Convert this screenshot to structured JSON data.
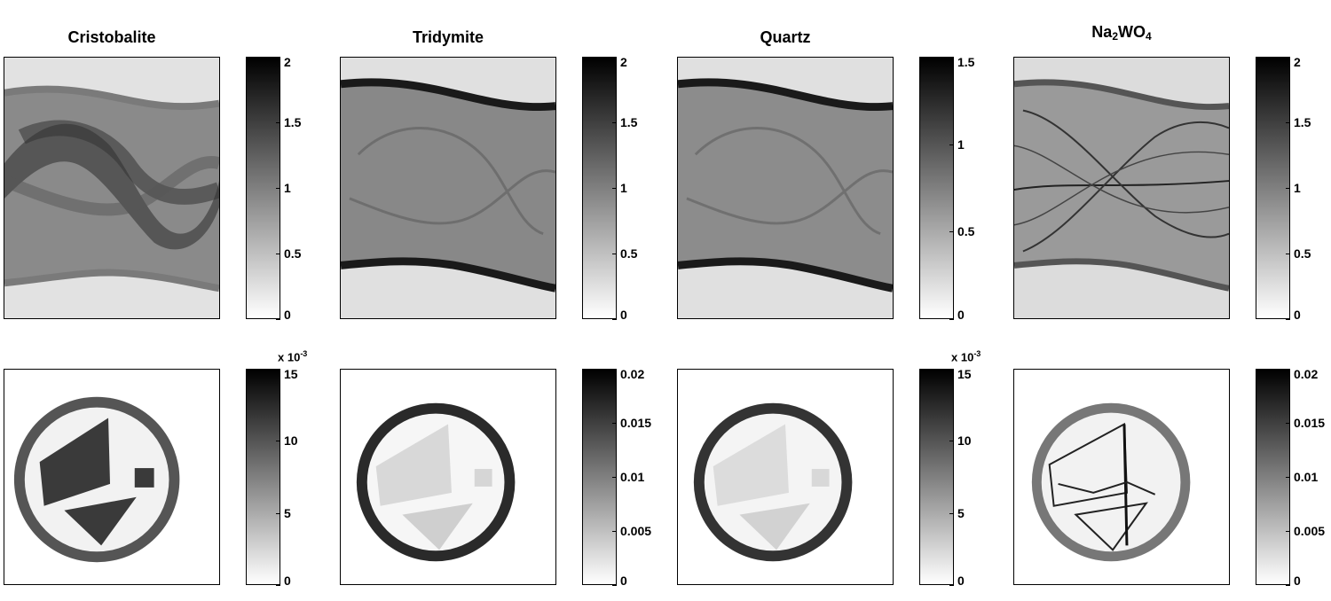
{
  "titles": {
    "cristobalite": "Cristobalite",
    "tridymite": "Tridymite",
    "quartz": "Quartz",
    "na2wo4_main": "Na",
    "na2wo4_sub1": "2",
    "na2wo4_mid": "WO",
    "na2wo4_sub2": "4"
  },
  "colorbars": {
    "top": [
      {
        "ticks": [
          "2",
          "1.5",
          "1",
          "0.5",
          "0"
        ],
        "max": 2
      },
      {
        "ticks": [
          "2",
          "1.5",
          "1",
          "0.5",
          "0"
        ],
        "max": 2
      },
      {
        "ticks": [
          "1.5",
          "1",
          "0.5",
          "0"
        ],
        "max": 1.5
      },
      {
        "ticks": [
          "2",
          "1.5",
          "1",
          "0.5",
          "0"
        ],
        "max": 2
      }
    ],
    "bottom": [
      {
        "ticks": [
          "15",
          "10",
          "5",
          "0"
        ],
        "max": 15,
        "exponent_base": "x 10",
        "exponent_power": "-3"
      },
      {
        "ticks": [
          "0.02",
          "0.015",
          "0.01",
          "0.005",
          "0"
        ],
        "max": 0.02
      },
      {
        "ticks": [
          "15",
          "10",
          "5",
          "0"
        ],
        "max": 15,
        "exponent_base": "x 10",
        "exponent_power": "-3"
      },
      {
        "ticks": [
          "0.02",
          "0.015",
          "0.01",
          "0.005",
          "0"
        ],
        "max": 0.02
      }
    ]
  },
  "colormap": {
    "high": "#000000",
    "low": "#ffffff"
  }
}
